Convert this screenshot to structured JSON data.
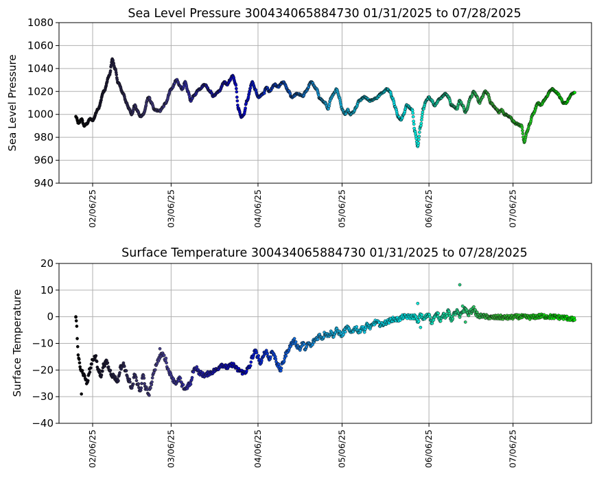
{
  "chart_data": [
    {
      "type": "scatter",
      "title": "Sea Level Pressure 300434065884730  01/31/2025 to 07/28/2025",
      "xlabel": "",
      "ylabel": "Sea Level Pressure",
      "ylim": [
        940,
        1080
      ],
      "yticks": [
        940,
        960,
        980,
        1000,
        1020,
        1040,
        1060,
        1080
      ],
      "xlim": [
        "2025-01-25",
        "2025-08-03"
      ],
      "xticks": [
        "2025-02-06",
        "2025-03-06",
        "2025-04-06",
        "2025-05-06",
        "2025-06-06",
        "2025-07-06"
      ],
      "xtick_labels": [
        "02/06/25",
        "03/06/25",
        "04/06/25",
        "05/06/25",
        "06/06/25",
        "07/06/25"
      ],
      "grid": true,
      "color_ramp": [
        "#000000",
        "#48408c",
        "#0000cc",
        "#1aa8e0",
        "#00f0f0",
        "#3ab83a",
        "#00ee00"
      ],
      "keypoints": [
        [
          "2025-01-31",
          998
        ],
        [
          "2025-02-01",
          992
        ],
        [
          "2025-02-02",
          996
        ],
        [
          "2025-02-03",
          990
        ],
        [
          "2025-02-04",
          992
        ],
        [
          "2025-02-05",
          996
        ],
        [
          "2025-02-06",
          995
        ],
        [
          "2025-02-08",
          1005
        ],
        [
          "2025-02-10",
          1020
        ],
        [
          "2025-02-12",
          1034
        ],
        [
          "2025-02-13",
          1048
        ],
        [
          "2025-02-14",
          1040
        ],
        [
          "2025-02-15",
          1028
        ],
        [
          "2025-02-17",
          1018
        ],
        [
          "2025-02-18",
          1010
        ],
        [
          "2025-02-19",
          1005
        ],
        [
          "2025-02-20",
          1000
        ],
        [
          "2025-02-21",
          1008
        ],
        [
          "2025-02-22",
          1003
        ],
        [
          "2025-02-23",
          998
        ],
        [
          "2025-02-24",
          1000
        ],
        [
          "2025-02-26",
          1015
        ],
        [
          "2025-02-27",
          1010
        ],
        [
          "2025-02-28",
          1004
        ],
        [
          "2025-03-02",
          1003
        ],
        [
          "2025-03-03",
          1006
        ],
        [
          "2025-03-04",
          1010
        ],
        [
          "2025-03-06",
          1022
        ],
        [
          "2025-03-08",
          1030
        ],
        [
          "2025-03-09",
          1025
        ],
        [
          "2025-03-10",
          1022
        ],
        [
          "2025-03-11",
          1028
        ],
        [
          "2025-03-12",
          1020
        ],
        [
          "2025-03-13",
          1012
        ],
        [
          "2025-03-14",
          1016
        ],
        [
          "2025-03-16",
          1022
        ],
        [
          "2025-03-18",
          1026
        ],
        [
          "2025-03-20",
          1020
        ],
        [
          "2025-03-21",
          1016
        ],
        [
          "2025-03-23",
          1020
        ],
        [
          "2025-03-25",
          1028
        ],
        [
          "2025-03-26",
          1026
        ],
        [
          "2025-03-27",
          1030
        ],
        [
          "2025-03-28",
          1034
        ],
        [
          "2025-03-29",
          1026
        ],
        [
          "2025-03-30",
          1005
        ],
        [
          "2025-03-31",
          998
        ],
        [
          "2025-04-01",
          1000
        ],
        [
          "2025-04-02",
          1012
        ],
        [
          "2025-04-04",
          1028
        ],
        [
          "2025-04-05",
          1022
        ],
        [
          "2025-04-06",
          1015
        ],
        [
          "2025-04-08",
          1018
        ],
        [
          "2025-04-09",
          1024
        ],
        [
          "2025-04-10",
          1020
        ],
        [
          "2025-04-12",
          1026
        ],
        [
          "2025-04-13",
          1024
        ],
        [
          "2025-04-15",
          1028
        ],
        [
          "2025-04-17",
          1020
        ],
        [
          "2025-04-18",
          1015
        ],
        [
          "2025-04-20",
          1018
        ],
        [
          "2025-04-22",
          1016
        ],
        [
          "2025-04-23",
          1020
        ],
        [
          "2025-04-25",
          1028
        ],
        [
          "2025-04-27",
          1022
        ],
        [
          "2025-04-28",
          1014
        ],
        [
          "2025-04-30",
          1010
        ],
        [
          "2025-05-01",
          1005
        ],
        [
          "2025-05-02",
          1014
        ],
        [
          "2025-05-03",
          1018
        ],
        [
          "2025-05-04",
          1022
        ],
        [
          "2025-05-05",
          1015
        ],
        [
          "2025-05-06",
          1005
        ],
        [
          "2025-05-07",
          1000
        ],
        [
          "2025-05-08",
          1004
        ],
        [
          "2025-05-09",
          1000
        ],
        [
          "2025-05-10",
          1002
        ],
        [
          "2025-05-11",
          1006
        ],
        [
          "2025-05-12",
          1012
        ],
        [
          "2025-05-14",
          1015
        ],
        [
          "2025-05-16",
          1012
        ],
        [
          "2025-05-18",
          1014
        ],
        [
          "2025-05-20",
          1018
        ],
        [
          "2025-05-22",
          1022
        ],
        [
          "2025-05-23",
          1020
        ],
        [
          "2025-05-24",
          1014
        ],
        [
          "2025-05-25",
          1006
        ],
        [
          "2025-05-26",
          998
        ],
        [
          "2025-05-27",
          995
        ],
        [
          "2025-05-28",
          1000
        ],
        [
          "2025-05-29",
          1008
        ],
        [
          "2025-05-31",
          1004
        ],
        [
          "2025-06-01",
          985
        ],
        [
          "2025-06-02",
          972
        ],
        [
          "2025-06-03",
          990
        ],
        [
          "2025-06-04",
          1005
        ],
        [
          "2025-06-05",
          1012
        ],
        [
          "2025-06-06",
          1015
        ],
        [
          "2025-06-07",
          1012
        ],
        [
          "2025-06-08",
          1008
        ],
        [
          "2025-06-10",
          1014
        ],
        [
          "2025-06-12",
          1018
        ],
        [
          "2025-06-13",
          1015
        ],
        [
          "2025-06-14",
          1008
        ],
        [
          "2025-06-16",
          1005
        ],
        [
          "2025-06-17",
          1012
        ],
        [
          "2025-06-18",
          1008
        ],
        [
          "2025-06-19",
          1002
        ],
        [
          "2025-06-21",
          1015
        ],
        [
          "2025-06-22",
          1020
        ],
        [
          "2025-06-23",
          1016
        ],
        [
          "2025-06-24",
          1010
        ],
        [
          "2025-06-25",
          1015
        ],
        [
          "2025-06-26",
          1020
        ],
        [
          "2025-06-27",
          1018
        ],
        [
          "2025-06-28",
          1010
        ],
        [
          "2025-06-30",
          1005
        ],
        [
          "2025-07-01",
          1002
        ],
        [
          "2025-07-02",
          1004
        ],
        [
          "2025-07-03",
          1000
        ],
        [
          "2025-07-05",
          998
        ],
        [
          "2025-07-06",
          994
        ],
        [
          "2025-07-07",
          992
        ],
        [
          "2025-07-09",
          990
        ],
        [
          "2025-07-10",
          976
        ],
        [
          "2025-07-11",
          985
        ],
        [
          "2025-07-12",
          992
        ],
        [
          "2025-07-13",
          1000
        ],
        [
          "2025-07-15",
          1010
        ],
        [
          "2025-07-16",
          1008
        ],
        [
          "2025-07-17",
          1012
        ],
        [
          "2025-07-18",
          1015
        ],
        [
          "2025-07-19",
          1020
        ],
        [
          "2025-07-20",
          1022
        ],
        [
          "2025-07-21",
          1020
        ],
        [
          "2025-07-22",
          1018
        ],
        [
          "2025-07-23",
          1014
        ],
        [
          "2025-07-24",
          1010
        ],
        [
          "2025-07-25",
          1010
        ],
        [
          "2025-07-26",
          1014
        ],
        [
          "2025-07-27",
          1018
        ],
        [
          "2025-07-28",
          1019
        ]
      ]
    },
    {
      "type": "scatter",
      "title": "Surface Temperature 300434065884730  01/31/2025 to 07/28/2025",
      "xlabel": "",
      "ylabel": "Surface Temperature",
      "ylim": [
        -40,
        20
      ],
      "yticks": [
        -40,
        -30,
        -20,
        -10,
        0,
        10,
        20
      ],
      "xlim": [
        "2025-01-25",
        "2025-08-03"
      ],
      "xticks": [
        "2025-02-06",
        "2025-03-06",
        "2025-04-06",
        "2025-05-06",
        "2025-06-06",
        "2025-07-06"
      ],
      "xtick_labels": [
        "02/06/25",
        "03/06/25",
        "04/06/25",
        "05/06/25",
        "06/06/25",
        "07/06/25"
      ],
      "grid": true,
      "color_ramp": [
        "#000000",
        "#48408c",
        "#0000cc",
        "#1aa8e0",
        "#00f0f0",
        "#3ab83a",
        "#00ee00"
      ],
      "keypoints": [
        [
          "2025-01-31",
          0
        ],
        [
          "2025-02-01",
          -16
        ],
        [
          "2025-02-02",
          -20
        ],
        [
          "2025-02-03",
          -22
        ],
        [
          "2025-02-04",
          -25
        ],
        [
          "2025-02-05",
          -20
        ],
        [
          "2025-02-06",
          -16
        ],
        [
          "2025-02-07",
          -15
        ],
        [
          "2025-02-08",
          -20
        ],
        [
          "2025-02-09",
          -22
        ],
        [
          "2025-02-10",
          -18
        ],
        [
          "2025-02-11",
          -17
        ],
        [
          "2025-02-12",
          -20
        ],
        [
          "2025-02-13",
          -22
        ],
        [
          "2025-02-15",
          -24
        ],
        [
          "2025-02-16",
          -19
        ],
        [
          "2025-02-17",
          -18
        ],
        [
          "2025-02-18",
          -21
        ],
        [
          "2025-02-19",
          -24
        ],
        [
          "2025-02-20",
          -27
        ],
        [
          "2025-02-21",
          -22
        ],
        [
          "2025-02-22",
          -25
        ],
        [
          "2025-02-23",
          -28
        ],
        [
          "2025-02-24",
          -22
        ],
        [
          "2025-02-25",
          -27
        ],
        [
          "2025-02-26",
          -29
        ],
        [
          "2025-02-27",
          -25
        ],
        [
          "2025-02-28",
          -20
        ],
        [
          "2025-03-01",
          -17
        ],
        [
          "2025-03-02",
          -15
        ],
        [
          "2025-03-03",
          -14
        ],
        [
          "2025-03-04",
          -16
        ],
        [
          "2025-03-05",
          -20
        ],
        [
          "2025-03-06",
          -22
        ],
        [
          "2025-03-07",
          -24
        ],
        [
          "2025-03-08",
          -25
        ],
        [
          "2025-03-09",
          -23
        ],
        [
          "2025-03-10",
          -26
        ],
        [
          "2025-03-11",
          -27
        ],
        [
          "2025-03-13",
          -25
        ],
        [
          "2025-03-14",
          -20
        ],
        [
          "2025-03-15",
          -19
        ],
        [
          "2025-03-16",
          -21
        ],
        [
          "2025-03-18",
          -22
        ],
        [
          "2025-03-20",
          -21
        ],
        [
          "2025-03-22",
          -20
        ],
        [
          "2025-03-24",
          -18
        ],
        [
          "2025-03-26",
          -19
        ],
        [
          "2025-03-28",
          -18
        ],
        [
          "2025-03-30",
          -20
        ],
        [
          "2025-04-01",
          -21
        ],
        [
          "2025-04-03",
          -19
        ],
        [
          "2025-04-04",
          -15
        ],
        [
          "2025-04-05",
          -13
        ],
        [
          "2025-04-06",
          -15
        ],
        [
          "2025-04-07",
          -18
        ],
        [
          "2025-04-08",
          -14
        ],
        [
          "2025-04-09",
          -13
        ],
        [
          "2025-04-10",
          -16
        ],
        [
          "2025-04-11",
          -13
        ],
        [
          "2025-04-12",
          -15
        ],
        [
          "2025-04-13",
          -18
        ],
        [
          "2025-04-14",
          -20
        ],
        [
          "2025-04-15",
          -17
        ],
        [
          "2025-04-16",
          -14
        ],
        [
          "2025-04-17",
          -12
        ],
        [
          "2025-04-18",
          -10
        ],
        [
          "2025-04-19",
          -9
        ],
        [
          "2025-04-20",
          -11
        ],
        [
          "2025-04-21",
          -12
        ],
        [
          "2025-04-22",
          -10
        ],
        [
          "2025-04-23",
          -12
        ],
        [
          "2025-04-24",
          -10
        ],
        [
          "2025-04-25",
          -11
        ],
        [
          "2025-04-26",
          -9
        ],
        [
          "2025-04-27",
          -8
        ],
        [
          "2025-04-28",
          -7
        ],
        [
          "2025-04-29",
          -8
        ],
        [
          "2025-04-30",
          -6
        ],
        [
          "2025-05-01",
          -7
        ],
        [
          "2025-05-02",
          -6
        ],
        [
          "2025-05-03",
          -7
        ],
        [
          "2025-05-04",
          -5
        ],
        [
          "2025-05-05",
          -6
        ],
        [
          "2025-05-06",
          -7
        ],
        [
          "2025-05-07",
          -5
        ],
        [
          "2025-05-08",
          -4
        ],
        [
          "2025-05-09",
          -6
        ],
        [
          "2025-05-10",
          -5
        ],
        [
          "2025-05-11",
          -4
        ],
        [
          "2025-05-12",
          -6
        ],
        [
          "2025-05-13",
          -4
        ],
        [
          "2025-05-14",
          -5
        ],
        [
          "2025-05-15",
          -3
        ],
        [
          "2025-05-16",
          -4
        ],
        [
          "2025-05-18",
          -2
        ],
        [
          "2025-05-20",
          -3
        ],
        [
          "2025-05-22",
          -2
        ],
        [
          "2025-05-24",
          -1
        ],
        [
          "2025-05-26",
          -1
        ],
        [
          "2025-05-28",
          0
        ],
        [
          "2025-05-30",
          0
        ],
        [
          "2025-06-01",
          0
        ],
        [
          "2025-06-02",
          -2
        ],
        [
          "2025-06-03",
          1
        ],
        [
          "2025-06-04",
          -1
        ],
        [
          "2025-06-05",
          0
        ],
        [
          "2025-06-06",
          1
        ],
        [
          "2025-06-07",
          -2
        ],
        [
          "2025-06-08",
          0
        ],
        [
          "2025-06-09",
          1
        ],
        [
          "2025-06-10",
          -1
        ],
        [
          "2025-06-11",
          1
        ],
        [
          "2025-06-12",
          0
        ],
        [
          "2025-06-13",
          2
        ],
        [
          "2025-06-14",
          -1
        ],
        [
          "2025-06-15",
          1
        ],
        [
          "2025-06-16",
          2
        ],
        [
          "2025-06-17",
          0
        ],
        [
          "2025-06-18",
          2
        ],
        [
          "2025-06-19",
          3
        ],
        [
          "2025-06-20",
          1
        ],
        [
          "2025-06-21",
          2
        ],
        [
          "2025-06-22",
          3
        ],
        [
          "2025-06-23",
          1
        ],
        [
          "2025-06-24",
          0
        ],
        [
          "2025-06-25",
          0.5
        ],
        [
          "2025-06-26",
          0
        ],
        [
          "2025-06-27",
          0
        ],
        [
          "2025-06-28",
          -0.3
        ],
        [
          "2025-07-01",
          -0.2
        ],
        [
          "2025-07-04",
          -0.3
        ],
        [
          "2025-07-08",
          0
        ],
        [
          "2025-07-12",
          -0.2
        ],
        [
          "2025-07-16",
          0.2
        ],
        [
          "2025-07-20",
          0
        ],
        [
          "2025-07-24",
          -0.3
        ],
        [
          "2025-07-26",
          -0.6
        ],
        [
          "2025-07-28",
          -1.2
        ]
      ],
      "outliers": [
        [
          "2025-01-31",
          0
        ],
        [
          "2025-02-02",
          -29
        ],
        [
          "2025-06-02",
          5
        ],
        [
          "2025-06-03",
          -4
        ],
        [
          "2025-06-17",
          12
        ],
        [
          "2025-06-18",
          4
        ],
        [
          "2025-06-19",
          -2
        ],
        [
          "2025-03-02",
          -12
        ]
      ]
    }
  ]
}
